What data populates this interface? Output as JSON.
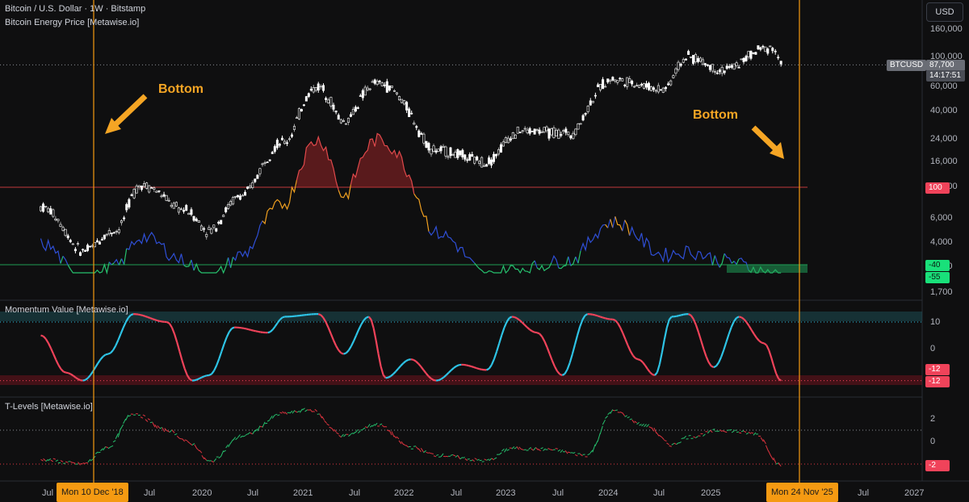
{
  "header": {
    "symbol_line": "Bitcoin / U.S. Dollar · 1W · Bitstamp",
    "indicator1": "Bitcoin Energy Price [Metawise.io]",
    "indicator2": "Momentum Value [Metawise.io]",
    "indicator3": "T-Levels [Metawise.io]",
    "currency_button": "USD"
  },
  "annotations": {
    "bottom_left": "Bottom",
    "bottom_right": "Bottom"
  },
  "price_axis": {
    "ticks": [
      "160,000",
      "100,000",
      "60,000",
      "40,000",
      "24,000",
      "16,000",
      "10,000",
      "6,000",
      "4,000",
      "2,500",
      "1,700"
    ]
  },
  "price_tags": {
    "symbol": "BTCUSD",
    "price": "87,700",
    "countdown": "14:17:51",
    "energy_level": "100",
    "energy_low1": "-40",
    "energy_low2": "-55"
  },
  "momentum_axis": {
    "ticks": [
      "10",
      "0"
    ],
    "tag1": "-12",
    "tag2": "-12"
  },
  "tlevels_axis": {
    "ticks": [
      "2",
      "0"
    ],
    "tag": "-2"
  },
  "time_axis": {
    "ticks": [
      "Jul",
      "Jul",
      "2020",
      "Jul",
      "2021",
      "Jul",
      "2022",
      "Jul",
      "2023",
      "Jul",
      "2024",
      "Jul",
      "2025",
      "Jul",
      "Jul",
      "2027"
    ],
    "highlight_left": "Mon 10 Dec '18",
    "highlight_right": "Mon 24 Nov '25"
  },
  "colors": {
    "background": "#0f0f10",
    "candles": "#ffffff",
    "energy_line": "#2f4fd6",
    "energy_hot": "#e0494b",
    "energy_mid": "#f0a020",
    "energy_low": "#26c26e",
    "momentum_up": "#2ec4e6",
    "momentum_down": "#f0435a",
    "tlevel_up": "#26c26e",
    "tlevel_down": "#e0343f",
    "vertical_marker": "#f59a12"
  },
  "chart_data": [
    {
      "type": "line",
      "title": "Bitcoin / U.S. Dollar · 1W · Bitstamp",
      "yscale": "log",
      "x": [
        "2018-07",
        "2018-12",
        "2019-04",
        "2019-07",
        "2019-12",
        "2020-03",
        "2020-07",
        "2020-12",
        "2021-04",
        "2021-07",
        "2021-11",
        "2022-06",
        "2022-12",
        "2023-04",
        "2023-10",
        "2024-03",
        "2024-09",
        "2024-12",
        "2025-04",
        "2025-10",
        "2025-11"
      ],
      "series": [
        {
          "name": "BTCUSD",
          "values": [
            7500,
            3500,
            5000,
            11000,
            7200,
            5000,
            9200,
            23000,
            60000,
            33000,
            64000,
            20000,
            16500,
            28000,
            27000,
            68000,
            58000,
            100000,
            80000,
            120000,
            87700
          ]
        },
        {
          "name": "Bitcoin Energy Price",
          "values": [
            4000,
            2000,
            2700,
            4500,
            3000,
            2100,
            3300,
            8000,
            24000,
            9000,
            24000,
            4800,
            2300,
            2600,
            3000,
            5800,
            3300,
            3500,
            3000,
            2400,
            2200
          ]
        }
      ],
      "levels": [
        100,
        -40,
        -55
      ]
    },
    {
      "type": "line",
      "title": "Momentum Value [Metawise.io]",
      "ylim": [
        -14,
        14
      ],
      "x": [
        "2018-07",
        "2018-10",
        "2018-12",
        "2019-03",
        "2019-06",
        "2019-10",
        "2020-01",
        "2020-03",
        "2020-06",
        "2020-10",
        "2020-12",
        "2021-04",
        "2021-07",
        "2021-10",
        "2021-12",
        "2022-03",
        "2022-06",
        "2022-09",
        "2022-12",
        "2023-03",
        "2023-06",
        "2023-09",
        "2023-12",
        "2024-03",
        "2024-06",
        "2024-08",
        "2024-10",
        "2024-12",
        "2025-03",
        "2025-06",
        "2025-09",
        "2025-11"
      ],
      "series": [
        {
          "name": "Momentum",
          "values": [
            5,
            -9,
            -12,
            -2,
            13,
            10,
            -12,
            -10,
            8,
            6,
            12,
            13,
            -2,
            12,
            -11,
            -4,
            -12,
            -6,
            -8,
            12,
            6,
            -10,
            13,
            11,
            -4,
            -10,
            12,
            13,
            -7,
            12,
            2,
            -12
          ]
        }
      ],
      "levels": [
        10,
        -12
      ]
    },
    {
      "type": "line",
      "title": "T-Levels [Metawise.io]",
      "ylim": [
        -2.5,
        3
      ],
      "x": [
        "2018-07",
        "2018-12",
        "2019-03",
        "2019-06",
        "2019-10",
        "2020-01",
        "2020-03",
        "2020-07",
        "2020-12",
        "2021-03",
        "2021-07",
        "2021-11",
        "2022-03",
        "2022-06",
        "2022-12",
        "2023-03",
        "2023-07",
        "2023-12",
        "2024-03",
        "2024-07",
        "2024-10",
        "2024-12",
        "2025-04",
        "2025-08",
        "2025-11"
      ],
      "series": [
        {
          "name": "T-Levels",
          "values": [
            -1.6,
            -2,
            -0.5,
            2.5,
            1,
            -0.2,
            -1.8,
            0.5,
            2.5,
            2.8,
            0.5,
            1.5,
            -0.5,
            -1.2,
            -1.7,
            -0.6,
            -0.7,
            -1.2,
            2.7,
            1.4,
            -0.3,
            0.4,
            1.0,
            0.7,
            -2.1
          ]
        }
      ],
      "levels": [
        2,
        0,
        -2
      ]
    }
  ]
}
